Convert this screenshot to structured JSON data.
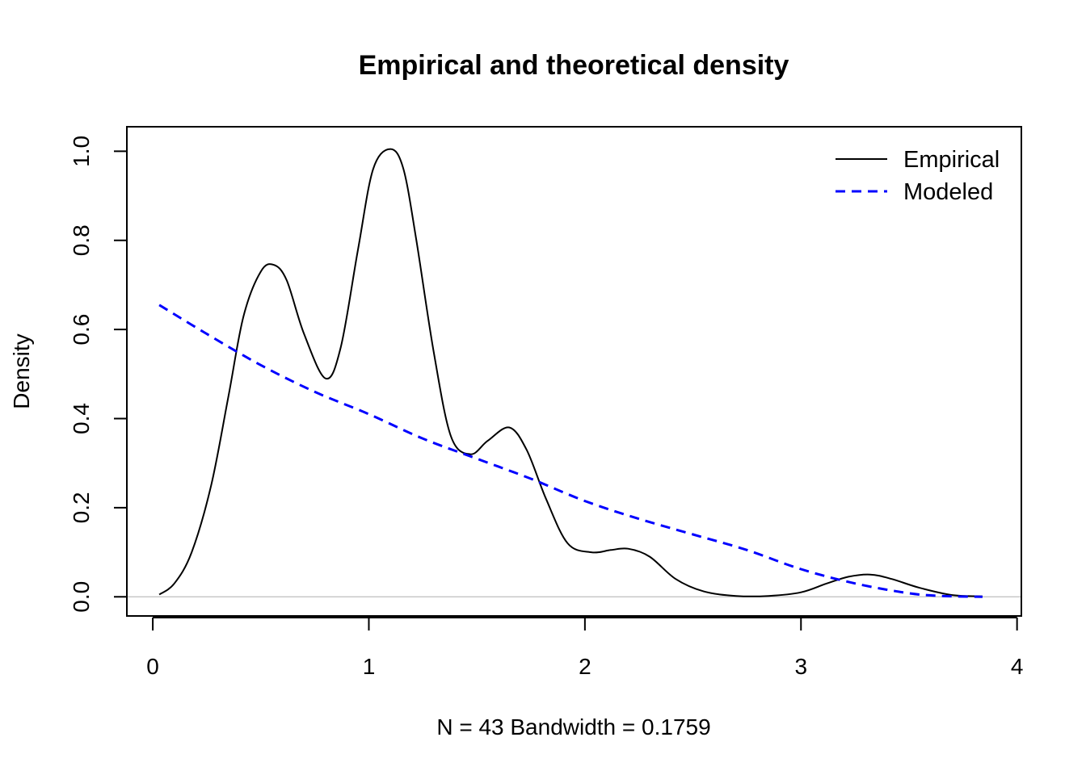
{
  "chart_data": {
    "type": "line",
    "title": "Empirical and theoretical density",
    "xlabel": "N = 43   Bandwidth = 0.1759",
    "ylabel": "Density",
    "xlim": [
      -0.12,
      4.02
    ],
    "ylim": [
      -0.043,
      1.055
    ],
    "x_ticks": [
      "0",
      "1",
      "2",
      "3",
      "4"
    ],
    "y_ticks": [
      "0.0",
      "0.2",
      "0.4",
      "0.6",
      "0.8",
      "1.0"
    ],
    "legend_position": "top-right",
    "grid": false,
    "colors": {
      "empirical": "#000000",
      "modeled": "#0000ff",
      "zero_line": "#bebebe"
    },
    "series": [
      {
        "name": "Empirical",
        "style": "solid",
        "x": [
          0.03,
          0.1,
          0.18,
          0.27,
          0.35,
          0.42,
          0.5,
          0.56,
          0.62,
          0.7,
          0.8,
          0.87,
          0.95,
          1.02,
          1.1,
          1.16,
          1.22,
          1.3,
          1.38,
          1.47,
          1.55,
          1.65,
          1.73,
          1.82,
          1.92,
          2.03,
          2.12,
          2.2,
          2.3,
          2.42,
          2.55,
          2.7,
          2.85,
          3.0,
          3.12,
          3.22,
          3.32,
          3.42,
          3.55,
          3.7,
          3.84
        ],
        "y": [
          0.005,
          0.03,
          0.1,
          0.25,
          0.45,
          0.63,
          0.73,
          0.745,
          0.71,
          0.59,
          0.49,
          0.56,
          0.78,
          0.96,
          1.005,
          0.96,
          0.8,
          0.55,
          0.36,
          0.32,
          0.35,
          0.38,
          0.33,
          0.22,
          0.12,
          0.1,
          0.105,
          0.108,
          0.09,
          0.04,
          0.012,
          0.002,
          0.002,
          0.01,
          0.03,
          0.045,
          0.05,
          0.04,
          0.02,
          0.004,
          0.001
        ]
      },
      {
        "name": "Modeled",
        "style": "dashed",
        "x": [
          0.03,
          0.25,
          0.5,
          0.75,
          1.0,
          1.25,
          1.5,
          1.75,
          2.0,
          2.25,
          2.5,
          2.75,
          3.0,
          3.25,
          3.5,
          3.65,
          3.84
        ],
        "y": [
          0.655,
          0.59,
          0.52,
          0.46,
          0.41,
          0.355,
          0.31,
          0.265,
          0.215,
          0.175,
          0.14,
          0.105,
          0.062,
          0.03,
          0.008,
          0.002,
          0.0
        ]
      }
    ]
  }
}
